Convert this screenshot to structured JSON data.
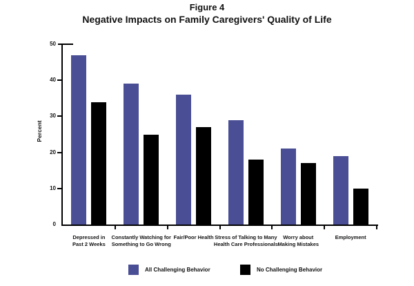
{
  "title": {
    "figure_label": "Figure 4",
    "main": "Negative Impacts on Family Caregivers' Quality of Life"
  },
  "chart_data": {
    "type": "bar",
    "title": "Figure 4",
    "subtitle": "Negative Impacts on Family Caregivers' Quality of Life",
    "xlabel": "",
    "ylabel": "Percent",
    "ylim": [
      0,
      50
    ],
    "yticks": [
      0,
      10,
      20,
      30,
      40,
      50
    ],
    "grid": false,
    "legend_position": "bottom",
    "categories": [
      "Depressed in Past 2 Weeks",
      "Constantly Watching for Something to Go Wrong",
      "Fair/Poor Health",
      "Stress of Talking to Many Health Care Professionals",
      "Worry about Making Mistakes",
      "Employment"
    ],
    "category_lines": [
      [
        "Depressed in",
        "Past 2 Weeks"
      ],
      [
        "Constantly Watching for",
        "Something to Go Wrong"
      ],
      [
        "Fair/Poor Health"
      ],
      [
        "Stress of Talking to Many",
        "Health Care Professionals"
      ],
      [
        "Worry about",
        "Making Mistakes"
      ],
      [
        "Employment"
      ]
    ],
    "series": [
      {
        "name": "All Challenging Behavior",
        "color": "#4a4e94",
        "values": [
          47,
          39,
          36,
          29,
          21,
          19
        ]
      },
      {
        "name": "No Challenging Behavior",
        "color": "#000000",
        "values": [
          34,
          25,
          27,
          18,
          17,
          10
        ]
      }
    ]
  }
}
